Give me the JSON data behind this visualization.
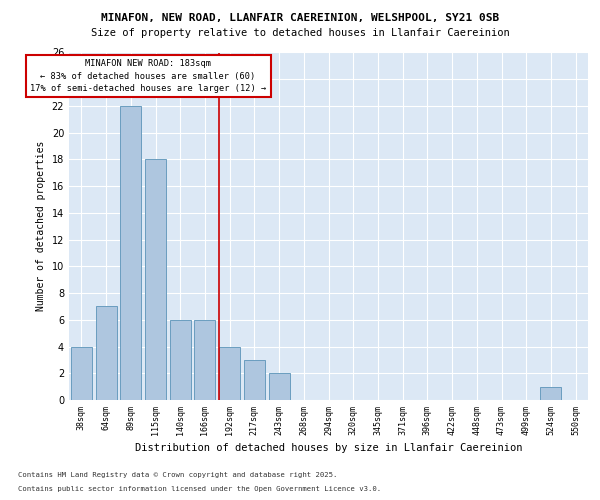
{
  "title1": "MINAFON, NEW ROAD, LLANFAIR CAEREINION, WELSHPOOL, SY21 0SB",
  "title2": "Size of property relative to detached houses in Llanfair Caereinion",
  "xlabel": "Distribution of detached houses by size in Llanfair Caereinion",
  "ylabel": "Number of detached properties",
  "categories": [
    "38sqm",
    "64sqm",
    "89sqm",
    "115sqm",
    "140sqm",
    "166sqm",
    "192sqm",
    "217sqm",
    "243sqm",
    "268sqm",
    "294sqm",
    "320sqm",
    "345sqm",
    "371sqm",
    "396sqm",
    "422sqm",
    "448sqm",
    "473sqm",
    "499sqm",
    "524sqm",
    "550sqm"
  ],
  "values": [
    4,
    7,
    22,
    18,
    6,
    6,
    4,
    3,
    2,
    0,
    0,
    0,
    0,
    0,
    0,
    0,
    0,
    0,
    0,
    1,
    0
  ],
  "bar_color": "#aec6df",
  "bar_edge_color": "#6a9dbf",
  "vline_color": "#cc0000",
  "annotation_box_color": "#ffffff",
  "annotation_box_edge_color": "#cc0000",
  "property_line_label": "MINAFON NEW ROAD: 183sqm",
  "annotation_line1": "← 83% of detached houses are smaller (60)",
  "annotation_line2": "17% of semi-detached houses are larger (12) →",
  "ylim": [
    0,
    26
  ],
  "yticks": [
    0,
    2,
    4,
    6,
    8,
    10,
    12,
    14,
    16,
    18,
    20,
    22,
    24,
    26
  ],
  "figure_bg": "#ffffff",
  "plot_bg": "#dce8f5",
  "footnote1": "Contains HM Land Registry data © Crown copyright and database right 2025.",
  "footnote2": "Contains public sector information licensed under the Open Government Licence v3.0."
}
